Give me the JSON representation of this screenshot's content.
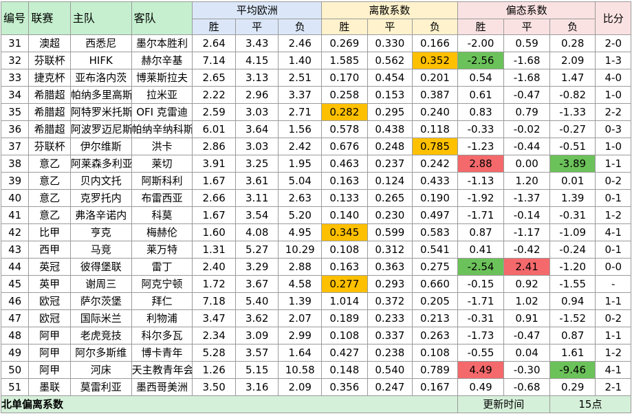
{
  "headers": {
    "id": "编号",
    "league": "联赛",
    "home": "主队",
    "away": "客队",
    "avg_euro": "平均欧洲",
    "dispersion": "离散系数",
    "skew": "偏态系数",
    "score": "比分",
    "win": "胜",
    "draw": "平",
    "loss": "负"
  },
  "colors": {
    "header_green": "#c5efce",
    "odds_blue": "#dbe7f8",
    "dispersion_yellow": "#fff2cc",
    "skew_pink": "#fbe2e2",
    "highlight_orange": "#ffc000",
    "highlight_red": "#f4696b",
    "highlight_green": "#6cc25a"
  },
  "rows": [
    {
      "id": "31",
      "league": "澳超",
      "home": "西悉尼",
      "away": "墨尔本胜利",
      "ow": "2.64",
      "od": "3.43",
      "ol": "2.46",
      "dw": "0.269",
      "dd": "0.330",
      "dl": "0.166",
      "sw": "-2.00",
      "sd": "0.59",
      "sl": "0.28",
      "score": "2-0",
      "hl": {}
    },
    {
      "id": "32",
      "league": "芬联杯",
      "home": "HIFK",
      "away": "赫尔辛基",
      "ow": "7.14",
      "od": "4.15",
      "ol": "1.40",
      "dw": "1.585",
      "dd": "0.562",
      "dl": "0.352",
      "sw": "-2.56",
      "sd": "-1.68",
      "sl": "2.09",
      "score": "1-3",
      "hl": {
        "dl": "orange",
        "sw": "green"
      }
    },
    {
      "id": "33",
      "league": "捷克杯",
      "home": "亚布洛内茨",
      "away": "博莱斯拉夫",
      "ow": "2.65",
      "od": "3.13",
      "ol": "2.51",
      "dw": "0.170",
      "dd": "0.454",
      "dl": "0.201",
      "sw": "0.54",
      "sd": "-1.68",
      "sl": "1.47",
      "score": "4-0",
      "hl": {}
    },
    {
      "id": "34",
      "league": "希腊超",
      "home": "帕纳多里高斯",
      "away": "拉米亚",
      "ow": "2.22",
      "od": "2.96",
      "ol": "3.37",
      "dw": "0.258",
      "dd": "0.153",
      "dl": "0.387",
      "sw": "0.61",
      "sd": "-0.47",
      "sl": "-0.82",
      "score": "1-0",
      "hl": {}
    },
    {
      "id": "35",
      "league": "希腊超",
      "home": "阿特罗米托斯",
      "away": "OFI 克雷迪",
      "ow": "2.59",
      "od": "3.03",
      "ol": "2.71",
      "dw": "0.282",
      "dd": "0.295",
      "dl": "0.240",
      "sw": "0.83",
      "sd": "0.79",
      "sl": "-1.33",
      "score": "2-2",
      "hl": {
        "dw": "orange"
      }
    },
    {
      "id": "36",
      "league": "希腊超",
      "home": "阿波罗迈尼斯",
      "away": "帕纳辛纳科斯",
      "ow": "6.01",
      "od": "3.64",
      "ol": "1.56",
      "dw": "0.578",
      "dd": "0.438",
      "dl": "0.118",
      "sw": "-0.33",
      "sd": "-0.02",
      "sl": "-0.27",
      "score": "0-3",
      "hl": {}
    },
    {
      "id": "37",
      "league": "芬联杯",
      "home": "伊尔维斯",
      "away": "洪卡",
      "ow": "2.86",
      "od": "3.03",
      "ol": "2.42",
      "dw": "0.676",
      "dd": "0.248",
      "dl": "0.785",
      "sw": "-1.23",
      "sd": "-0.44",
      "sl": "-0.51",
      "score": "1-0",
      "hl": {
        "dl": "orange"
      }
    },
    {
      "id": "38",
      "league": "意乙",
      "home": "阿莱森多利亚",
      "away": "莱切",
      "ow": "3.91",
      "od": "3.25",
      "ol": "1.95",
      "dw": "0.463",
      "dd": "0.237",
      "dl": "0.242",
      "sw": "2.88",
      "sd": "0.00",
      "sl": "-3.89",
      "score": "1-1",
      "hl": {
        "sw": "red",
        "sl": "green"
      }
    },
    {
      "id": "39",
      "league": "意乙",
      "home": "贝内文托",
      "away": "阿斯科利",
      "ow": "1.67",
      "od": "3.61",
      "ol": "5.04",
      "dw": "0.163",
      "dd": "0.124",
      "dl": "0.433",
      "sw": "-1.13",
      "sd": "1.20",
      "sl": "0.01",
      "score": "0-2",
      "hl": {}
    },
    {
      "id": "40",
      "league": "意乙",
      "home": "克罗托内",
      "away": "布雷西亚",
      "ow": "2.66",
      "od": "3.11",
      "ol": "2.63",
      "dw": "0.133",
      "dd": "0.265",
      "dl": "0.190",
      "sw": "-1.92",
      "sd": "-1.37",
      "sl": "1.39",
      "score": "0-1",
      "hl": {}
    },
    {
      "id": "41",
      "league": "意乙",
      "home": "弗洛辛诺内",
      "away": "科莫",
      "ow": "1.67",
      "od": "3.54",
      "ol": "5.20",
      "dw": "0.140",
      "dd": "0.230",
      "dl": "0.497",
      "sw": "-1.71",
      "sd": "-0.14",
      "sl": "-0.31",
      "score": "1-2",
      "hl": {}
    },
    {
      "id": "42",
      "league": "比甲",
      "home": "亨克",
      "away": "梅赫伦",
      "ow": "1.60",
      "od": "4.08",
      "ol": "4.95",
      "dw": "0.345",
      "dd": "0.599",
      "dl": "0.583",
      "sw": "0.87",
      "sd": "-1.17",
      "sl": "-1.09",
      "score": "4-1",
      "hl": {
        "dw": "orange"
      }
    },
    {
      "id": "43",
      "league": "西甲",
      "home": "马竞",
      "away": "莱万特",
      "ow": "1.31",
      "od": "5.27",
      "ol": "10.29",
      "dw": "0.108",
      "dd": "0.312",
      "dl": "0.541",
      "sw": "0.41",
      "sd": "-0.42",
      "sl": "-0.24",
      "score": "0-1",
      "hl": {}
    },
    {
      "id": "44",
      "league": "英冠",
      "home": "彼得堡联",
      "away": "雷丁",
      "ow": "2.40",
      "od": "3.29",
      "ol": "2.88",
      "dw": "0.163",
      "dd": "0.363",
      "dl": "0.275",
      "sw": "-2.54",
      "sd": "2.41",
      "sl": "-1.20",
      "score": "0-0",
      "hl": {
        "sw": "green",
        "sd": "red"
      }
    },
    {
      "id": "45",
      "league": "英甲",
      "home": "谢周三",
      "away": "阿克宁顿",
      "ow": "1.72",
      "od": "3.67",
      "ol": "4.58",
      "dw": "0.277",
      "dd": "0.293",
      "dl": "0.660",
      "sw": "-0.15",
      "sd": "0.92",
      "sl": "-1.55",
      "score": "-",
      "hl": {
        "dw": "orange"
      }
    },
    {
      "id": "46",
      "league": "欧冠",
      "home": "萨尔茨堡",
      "away": "拜仁",
      "ow": "7.18",
      "od": "5.40",
      "ol": "1.39",
      "dw": "1.014",
      "dd": "0.372",
      "dl": "0.205",
      "sw": "-1.71",
      "sd": "1.02",
      "sl": "0.94",
      "score": "1-1",
      "hl": {}
    },
    {
      "id": "47",
      "league": "欧冠",
      "home": "国际米兰",
      "away": "利物浦",
      "ow": "3.47",
      "od": "3.62",
      "ol": "2.07",
      "dw": "0.189",
      "dd": "0.233",
      "dl": "0.213",
      "sw": "-0.31",
      "sd": "0.91",
      "sl": "-1.52",
      "score": "0-2",
      "hl": {}
    },
    {
      "id": "48",
      "league": "阿甲",
      "home": "老虎竞技",
      "away": "科尔多瓦",
      "ow": "2.34",
      "od": "3.09",
      "ol": "2.99",
      "dw": "0.108",
      "dd": "0.337",
      "dl": "0.263",
      "sw": "-1.73",
      "sd": "-0.47",
      "sl": "0.87",
      "score": "1-1",
      "hl": {}
    },
    {
      "id": "49",
      "league": "阿甲",
      "home": "阿尔多斯维",
      "away": "博卡青年",
      "ow": "5.28",
      "od": "3.57",
      "ol": "1.64",
      "dw": "0.427",
      "dd": "0.238",
      "dl": "0.108",
      "sw": "-0.55",
      "sd": "0.04",
      "sl": "1.61",
      "score": "1-2",
      "hl": {}
    },
    {
      "id": "50",
      "league": "阿甲",
      "home": "河床",
      "away": "天主教青年会",
      "ow": "1.26",
      "od": "5.15",
      "ol": "10.58",
      "dw": "0.148",
      "dd": "0.540",
      "dl": "0.789",
      "sw": "4.49",
      "sd": "-0.30",
      "sl": "-9.46",
      "score": "4-1",
      "hl": {
        "sw": "red",
        "sl": "green"
      }
    },
    {
      "id": "51",
      "league": "墨联",
      "home": "莫雷利亚",
      "away": "墨西哥美洲",
      "ow": "3.50",
      "od": "3.16",
      "ol": "2.09",
      "dw": "0.356",
      "dd": "0.247",
      "dl": "0.167",
      "sw": "0.49",
      "sd": "-0.68",
      "sl": "0.29",
      "score": "2-1",
      "hl": {}
    }
  ],
  "footer": {
    "title": "北单偏离系数",
    "update_label": "更新时间",
    "update_value": "15点"
  }
}
